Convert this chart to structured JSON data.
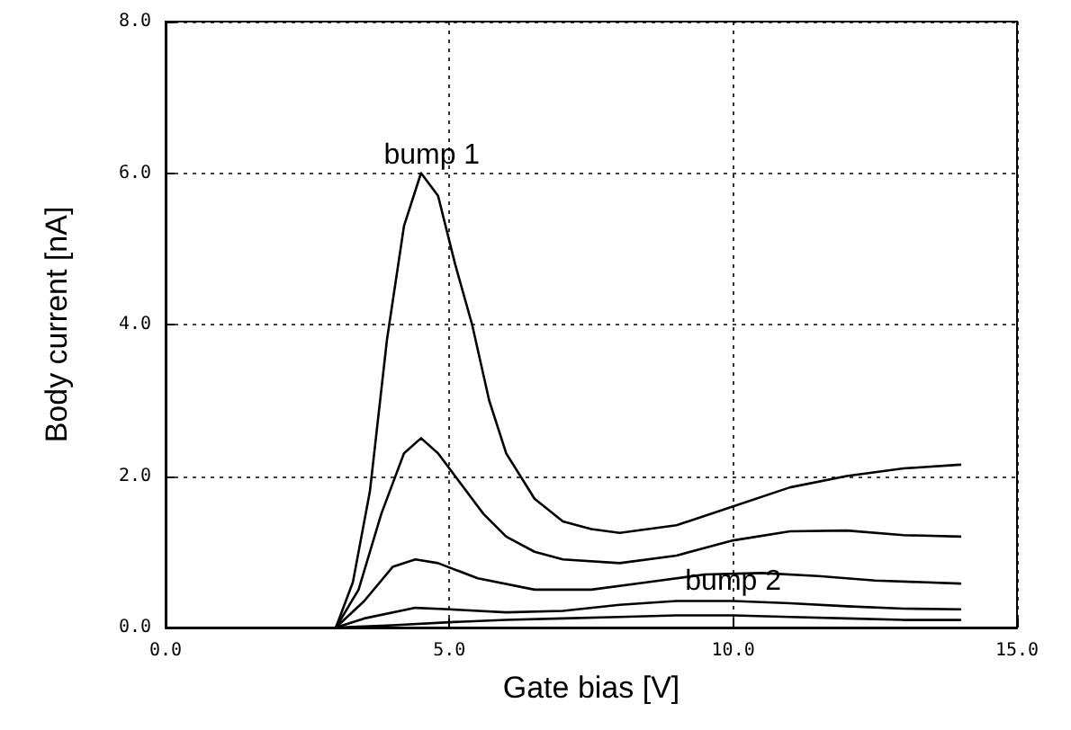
{
  "chart_data": {
    "type": "line",
    "xlabel": "Gate bias [V]",
    "ylabel": "Body current [nA]",
    "xlim": [
      0,
      15
    ],
    "xticks": [
      {
        "value": 0,
        "label": "0.0"
      },
      {
        "value": 5,
        "label": "5.0"
      },
      {
        "value": 10,
        "label": "10.0"
      },
      {
        "value": 15,
        "label": "15.0"
      }
    ],
    "ylim": [
      0,
      8
    ],
    "yticks": [
      {
        "value": 0,
        "label": "0.0"
      },
      {
        "value": 2,
        "label": "2.0"
      },
      {
        "value": 4,
        "label": "4.0"
      },
      {
        "value": 6,
        "label": "6.0"
      },
      {
        "value": 8,
        "label": "8.0"
      }
    ],
    "grid": true,
    "marker": "none",
    "line_style": "solid",
    "series": [
      {
        "color": "#000000",
        "x": [
          3.0,
          3.3,
          3.6,
          3.9,
          4.2,
          4.5,
          4.8,
          5.1,
          5.4,
          5.7,
          6.0,
          6.5,
          7.0,
          7.5,
          8.0,
          9,
          10,
          11,
          12,
          13,
          14
        ],
        "values": [
          0,
          0.6,
          1.8,
          3.8,
          5.3,
          6.0,
          5.7,
          4.8,
          4.0,
          3.0,
          2.3,
          1.7,
          1.4,
          1.3,
          1.25,
          1.35,
          1.6,
          1.85,
          2.0,
          2.1,
          2.15
        ]
      },
      {
        "color": "#000000",
        "x": [
          3.0,
          3.4,
          3.8,
          4.2,
          4.5,
          4.8,
          5.2,
          5.6,
          6,
          6.5,
          7,
          8,
          9,
          10,
          11,
          12,
          13,
          14
        ],
        "values": [
          0,
          0.5,
          1.5,
          2.3,
          2.5,
          2.3,
          1.9,
          1.5,
          1.2,
          1.0,
          0.9,
          0.85,
          0.95,
          1.15,
          1.27,
          1.28,
          1.22,
          1.2
        ]
      },
      {
        "color": "#000000",
        "x": [
          3.0,
          3.5,
          4.0,
          4.4,
          4.8,
          5.5,
          6.5,
          7.5,
          8.5,
          9.5,
          10.5,
          11.5,
          12.5,
          14
        ],
        "values": [
          0,
          0.35,
          0.8,
          0.9,
          0.85,
          0.65,
          0.5,
          0.5,
          0.6,
          0.7,
          0.72,
          0.68,
          0.62,
          0.58
        ]
      },
      {
        "color": "#000000",
        "x": [
          3.0,
          3.5,
          4.4,
          5,
          6,
          7,
          8,
          9,
          10,
          11,
          12,
          13,
          14
        ],
        "values": [
          0,
          0.12,
          0.26,
          0.24,
          0.2,
          0.22,
          0.3,
          0.35,
          0.35,
          0.32,
          0.28,
          0.25,
          0.24
        ]
      },
      {
        "color": "#000000",
        "x": [
          3.0,
          4,
          5,
          6,
          7,
          8,
          9,
          10,
          11,
          12,
          13,
          14
        ],
        "values": [
          0,
          0.03,
          0.07,
          0.1,
          0.12,
          0.14,
          0.16,
          0.16,
          0.14,
          0.12,
          0.1,
          0.1
        ]
      }
    ],
    "annotations": [
      {
        "text": "bump 1",
        "x": 4.5,
        "y": 6.0
      },
      {
        "text": "bump 2",
        "x": 10,
        "y": 0.6
      }
    ]
  }
}
